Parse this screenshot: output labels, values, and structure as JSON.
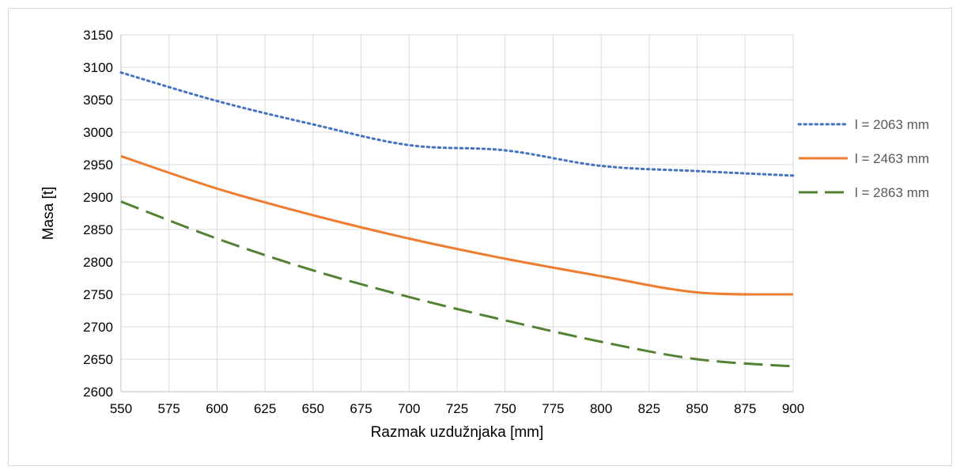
{
  "chart_data": {
    "type": "line",
    "title": "",
    "xlabel": "Razmak uzdužnjaka [mm]",
    "ylabel": "Masa [t]",
    "x_ticks": [
      550,
      575,
      600,
      625,
      650,
      675,
      700,
      725,
      750,
      775,
      800,
      825,
      850,
      875,
      900
    ],
    "y_ticks": [
      2600,
      2650,
      2700,
      2750,
      2800,
      2850,
      2900,
      2950,
      3000,
      3050,
      3100,
      3150
    ],
    "xlim": [
      550,
      900
    ],
    "ylim": [
      2600,
      3150
    ],
    "grid": true,
    "legend_position": "right",
    "x": [
      550,
      600,
      650,
      700,
      750,
      800,
      850,
      900
    ],
    "series": [
      {
        "name": "l = 2063 mm",
        "color": "#4472c4",
        "style": "dotted",
        "values": [
          3092,
          3048,
          3012,
          2980,
          2972,
          2948,
          2940,
          2933
        ]
      },
      {
        "name": "l = 2463 mm",
        "color": "#ed7d31",
        "style": "solid",
        "values": [
          2963,
          2913,
          2872,
          2836,
          2805,
          2778,
          2753,
          2750
        ]
      },
      {
        "name": "l = 2863 mm",
        "color": "#548235",
        "style": "dashed",
        "values": [
          2893,
          2836,
          2787,
          2746,
          2710,
          2677,
          2650,
          2639
        ]
      }
    ]
  }
}
